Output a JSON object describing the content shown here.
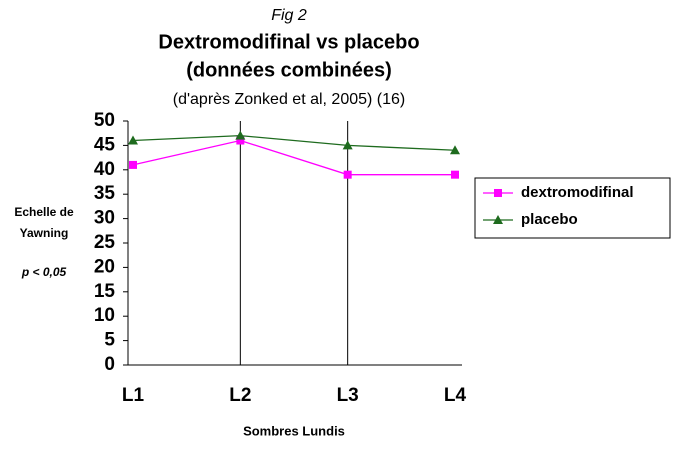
{
  "chart_data": {
    "type": "line",
    "figure_label": "Fig 2",
    "title": "Dextromodifinal vs placebo",
    "subtitle": "(données combinées)",
    "note": "(d'après Zonked et al, 2005) (16)",
    "y_label": [
      "Echelle de",
      "Yawning"
    ],
    "annotation": "p < 0,05",
    "x_label": "Sombres Lundis",
    "categories": [
      "L1",
      "L2",
      "L3",
      "L4"
    ],
    "series": [
      {
        "name": "dextromodifinal",
        "color": "#ff00ff",
        "marker": "square",
        "values": [
          41,
          46,
          39,
          39
        ]
      },
      {
        "name": "placebo",
        "color": "#1e6b1e",
        "marker": "triangle",
        "values": [
          46,
          47,
          45,
          44
        ]
      }
    ],
    "ylim": [
      0,
      50
    ],
    "yticks": [
      0,
      5,
      10,
      15,
      20,
      25,
      30,
      35,
      40,
      45,
      50
    ],
    "legend": "right"
  }
}
